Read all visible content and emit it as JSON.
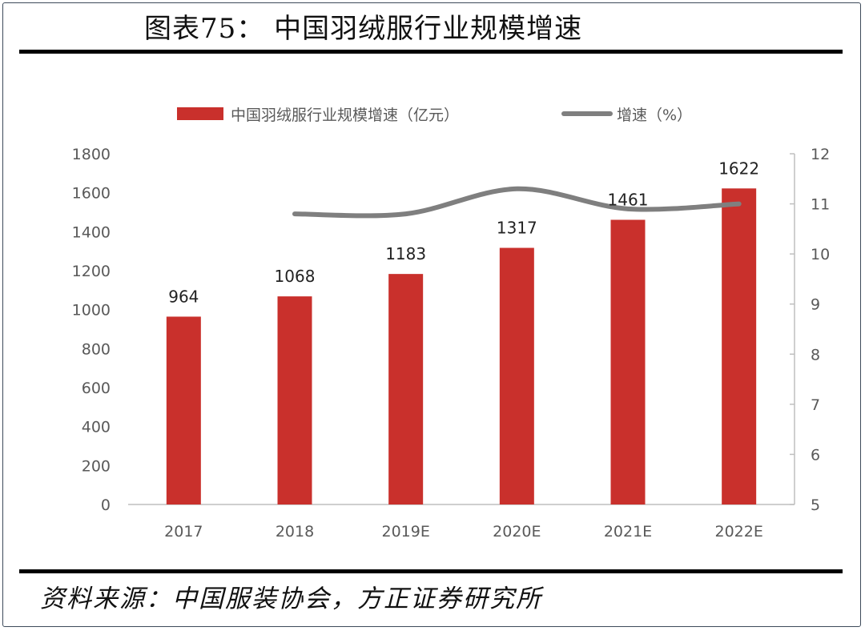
{
  "figure": {
    "title": "图表75：  中国羽绒服行业规模增速",
    "source": "资料来源：中国服装协会，方正证券研究所"
  },
  "colors": {
    "bar": "#c9302c",
    "line": "#7f7f7f",
    "axis": "#bfbfbf",
    "text": "#595959"
  },
  "chart_data": {
    "type": "bar",
    "categories": [
      "2017",
      "2018",
      "2019E",
      "2020E",
      "2021E",
      "2022E"
    ],
    "series": [
      {
        "name": "中国羽绒服行业规模增速（亿元）",
        "type": "bar",
        "axis": "left",
        "values": [
          964,
          1068,
          1183,
          1317,
          1461,
          1622
        ],
        "data_labels": [
          "964",
          "1068",
          "1183",
          "1317",
          "1461",
          "1622"
        ]
      },
      {
        "name": "增速（%）",
        "type": "line",
        "axis": "right",
        "values": [
          null,
          10.8,
          10.8,
          11.3,
          10.9,
          11.0
        ]
      }
    ],
    "y_left": {
      "lim": [
        0,
        1800
      ],
      "ticks": [
        "0",
        "200",
        "400",
        "600",
        "800",
        "1000",
        "1200",
        "1400",
        "1600",
        "1800"
      ]
    },
    "y_right": {
      "lim": [
        5,
        12
      ],
      "ticks": [
        "5",
        "6",
        "7",
        "8",
        "9",
        "10",
        "11",
        "12"
      ]
    },
    "grid": false,
    "legend": "top-center"
  }
}
